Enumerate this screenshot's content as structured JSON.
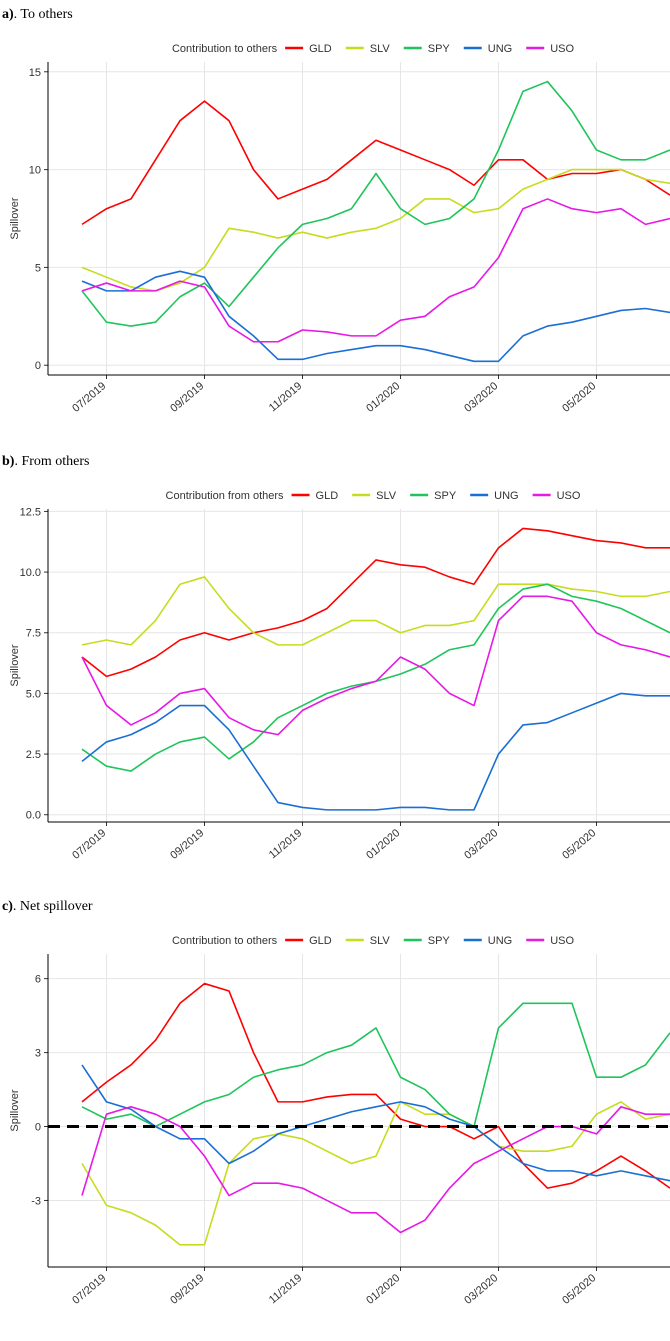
{
  "chart_data": [
    {
      "type": "line",
      "panel": "a)",
      "heading": ". To others",
      "legend_title": "Contribution to others",
      "y_label": "Spillover",
      "categories": [
        null,
        "07/2019",
        null,
        null,
        null,
        "09/2019",
        null,
        null,
        null,
        "11/2019",
        null,
        null,
        null,
        "01/2020",
        null,
        null,
        null,
        "03/2020",
        null,
        null,
        null,
        "05/2020",
        null,
        null,
        null
      ],
      "ylim": [
        -0.5,
        15.5
      ],
      "yticks": [
        0,
        5,
        10,
        15
      ],
      "grid": true,
      "legend": "top",
      "series": [
        {
          "name": "GLD",
          "color": "#ff0000",
          "values": [
            7.2,
            8.0,
            8.5,
            10.5,
            12.5,
            13.5,
            12.5,
            10,
            8.5,
            9,
            9.5,
            10.5,
            11.5,
            11,
            10.5,
            10,
            9.2,
            10.5,
            10.5,
            9.5,
            9.8,
            9.8,
            10,
            9.5,
            8.7
          ]
        },
        {
          "name": "SLV",
          "color": "#c6dc1f",
          "values": [
            5.0,
            4.5,
            4.0,
            3.8,
            4.2,
            5.0,
            7.0,
            6.8,
            6.5,
            6.8,
            6.5,
            6.8,
            7.0,
            7.5,
            8.5,
            8.5,
            7.8,
            8.0,
            9.0,
            9.5,
            10.0,
            10.0,
            10.0,
            9.5,
            9.3
          ]
        },
        {
          "name": "SPY",
          "color": "#1fc45a",
          "values": [
            3.8,
            2.2,
            2.0,
            2.2,
            3.5,
            4.2,
            3.0,
            4.5,
            6.0,
            7.2,
            7.5,
            8.0,
            9.8,
            8.0,
            7.2,
            7.5,
            8.5,
            11.0,
            14.0,
            14.5,
            13.0,
            11.0,
            10.5,
            10.5,
            11.0
          ]
        },
        {
          "name": "UNG",
          "color": "#1a6fd4",
          "values": [
            4.3,
            3.8,
            3.8,
            4.5,
            4.8,
            4.5,
            2.5,
            1.5,
            0.3,
            0.3,
            0.6,
            0.8,
            1.0,
            1.0,
            0.8,
            0.5,
            0.2,
            0.2,
            1.5,
            2.0,
            2.2,
            2.5,
            2.8,
            2.9,
            2.7
          ]
        },
        {
          "name": "USO",
          "color": "#e619e6",
          "values": [
            3.8,
            4.2,
            3.8,
            3.8,
            4.3,
            4.0,
            2.0,
            1.2,
            1.2,
            1.8,
            1.7,
            1.5,
            1.5,
            2.3,
            2.5,
            3.5,
            4.0,
            5.5,
            8.0,
            8.5,
            8.0,
            7.8,
            8.0,
            7.2,
            7.5
          ]
        }
      ]
    },
    {
      "type": "line",
      "panel": "b)",
      "heading": ". From others",
      "legend_title": "Contribution from others",
      "y_label": "Spillover",
      "categories": [
        null,
        "07/2019",
        null,
        null,
        null,
        "09/2019",
        null,
        null,
        null,
        "11/2019",
        null,
        null,
        null,
        "01/2020",
        null,
        null,
        null,
        "03/2020",
        null,
        null,
        null,
        "05/2020",
        null,
        null,
        null
      ],
      "ylim": [
        -0.3,
        12.6
      ],
      "yticks": [
        {
          "value": 0,
          "label": "0.0"
        },
        2.5,
        {
          "value": 5,
          "label": "5.0"
        },
        7.5,
        {
          "value": 10,
          "label": "10.0"
        },
        12.5
      ],
      "grid": true,
      "legend": "top",
      "series": [
        {
          "name": "GLD",
          "color": "#ff0000",
          "values": [
            6.5,
            5.7,
            6.0,
            6.5,
            7.2,
            7.5,
            7.2,
            7.5,
            7.7,
            8.0,
            8.5,
            9.5,
            10.5,
            10.3,
            10.2,
            9.8,
            9.5,
            11.0,
            11.8,
            11.7,
            11.5,
            11.3,
            11.2,
            11.0,
            11.0
          ]
        },
        {
          "name": "SLV",
          "color": "#c6dc1f",
          "values": [
            7.0,
            7.2,
            7.0,
            8.0,
            9.5,
            9.8,
            8.5,
            7.5,
            7.0,
            7.0,
            7.5,
            8.0,
            8.0,
            7.5,
            7.8,
            7.8,
            8.0,
            9.5,
            9.5,
            9.5,
            9.3,
            9.2,
            9.0,
            9.0,
            9.2
          ]
        },
        {
          "name": "SPY",
          "color": "#1fc45a",
          "values": [
            2.7,
            2.0,
            1.8,
            2.5,
            3.0,
            3.2,
            2.3,
            3.0,
            4.0,
            4.5,
            5.0,
            5.3,
            5.5,
            5.8,
            6.2,
            6.8,
            7.0,
            8.5,
            9.3,
            9.5,
            9.0,
            8.8,
            8.5,
            8.0,
            7.5
          ]
        },
        {
          "name": "UNG",
          "color": "#1a6fd4",
          "values": [
            2.2,
            3.0,
            3.3,
            3.8,
            4.5,
            4.5,
            3.5,
            2.0,
            0.5,
            0.3,
            0.2,
            0.2,
            0.2,
            0.3,
            0.3,
            0.2,
            0.2,
            2.5,
            3.7,
            3.8,
            4.2,
            4.6,
            5.0,
            4.9,
            4.9
          ]
        },
        {
          "name": "USO",
          "color": "#e619e6",
          "values": [
            6.5,
            4.5,
            3.7,
            4.2,
            5.0,
            5.2,
            4.0,
            3.5,
            3.3,
            4.3,
            4.8,
            5.2,
            5.5,
            6.5,
            6.0,
            5.0,
            4.5,
            8.0,
            9.0,
            9.0,
            8.8,
            7.5,
            7.0,
            6.8,
            6.5
          ]
        }
      ]
    },
    {
      "type": "line",
      "panel": "c)",
      "heading": ". Net spillover",
      "legend_title": "Contribution to others",
      "y_label": "Spillover",
      "categories": [
        null,
        "07/2019",
        null,
        null,
        null,
        "09/2019",
        null,
        null,
        null,
        "11/2019",
        null,
        null,
        null,
        "01/2020",
        null,
        null,
        null,
        "03/2020",
        null,
        null,
        null,
        "05/2020",
        null,
        null,
        null
      ],
      "ylim": [
        -5.7,
        7
      ],
      "yticks": [
        -3,
        0,
        3,
        6
      ],
      "grid": true,
      "legend": "top",
      "hline": 0,
      "series": [
        {
          "name": "GLD",
          "color": "#ff0000",
          "values": [
            1.0,
            1.8,
            2.5,
            3.5,
            5.0,
            5.8,
            5.5,
            3.0,
            1.0,
            1.0,
            1.2,
            1.3,
            1.3,
            0.3,
            0.0,
            0.0,
            -0.5,
            0.0,
            -1.5,
            -2.5,
            -2.3,
            -1.8,
            -1.2,
            -1.8,
            -2.5
          ]
        },
        {
          "name": "SLV",
          "color": "#c6dc1f",
          "values": [
            -1.5,
            -3.2,
            -3.5,
            -4.0,
            -4.8,
            -4.8,
            -1.5,
            -0.5,
            -0.3,
            -0.5,
            -1.0,
            -1.5,
            -1.2,
            1.0,
            0.5,
            0.5,
            0.0,
            -0.8,
            -1.0,
            -1.0,
            -0.8,
            0.5,
            1.0,
            0.3,
            0.5
          ]
        },
        {
          "name": "SPY",
          "color": "#1fc45a",
          "values": [
            0.8,
            0.3,
            0.5,
            0.0,
            0.5,
            1.0,
            1.3,
            2.0,
            2.3,
            2.5,
            3.0,
            3.3,
            4.0,
            2.0,
            1.5,
            0.5,
            0.0,
            4.0,
            5.0,
            5.0,
            5.0,
            2.0,
            2.0,
            2.5,
            3.8
          ]
        },
        {
          "name": "UNG",
          "color": "#1a6fd4",
          "values": [
            2.5,
            1.0,
            0.7,
            0.0,
            -0.5,
            -0.5,
            -1.5,
            -1.0,
            -0.3,
            0.0,
            0.3,
            0.6,
            0.8,
            1.0,
            0.8,
            0.3,
            0.0,
            -0.8,
            -1.5,
            -1.8,
            -1.8,
            -2.0,
            -1.8,
            -2.0,
            -2.2
          ]
        },
        {
          "name": "USO",
          "color": "#e619e6",
          "values": [
            -2.8,
            0.5,
            0.8,
            0.5,
            0.0,
            -1.2,
            -2.8,
            -2.3,
            -2.3,
            -2.5,
            -3.0,
            -3.5,
            -3.5,
            -4.3,
            -3.8,
            -2.5,
            -1.5,
            -1.0,
            -0.5,
            0.0,
            0.0,
            -0.3,
            0.8,
            0.5,
            0.5
          ]
        }
      ]
    }
  ]
}
